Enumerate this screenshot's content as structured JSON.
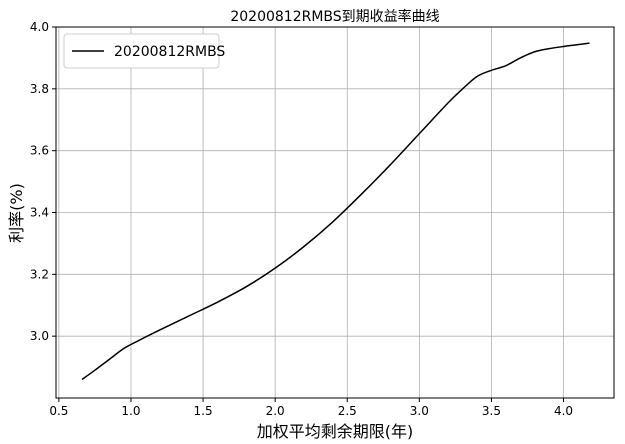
{
  "chart_data": {
    "type": "line",
    "title": "20200812RMBS到期收益率曲线",
    "xlabel": "加权平均剩余期限(年)",
    "ylabel": "利率(%)",
    "xlim": [
      0.48,
      4.35
    ],
    "ylim": [
      2.8,
      4.0
    ],
    "xticks": [
      0.5,
      1.0,
      1.5,
      2.0,
      2.5,
      3.0,
      3.5,
      4.0
    ],
    "xtick_labels": [
      "0.5",
      "1.0",
      "1.5",
      "2.0",
      "2.5",
      "3.0",
      "3.5",
      "4.0"
    ],
    "yticks": [
      3.0,
      3.2,
      3.4,
      3.6,
      3.8,
      4.0
    ],
    "ytick_labels": [
      "3.0",
      "3.2",
      "3.4",
      "3.6",
      "3.8",
      "4.0"
    ],
    "grid": true,
    "legend": {
      "position": "top-left",
      "entries": [
        "20200812RMBS"
      ]
    },
    "series": [
      {
        "name": "20200812RMBS",
        "color": "#000000",
        "x": [
          0.66,
          0.75,
          0.85,
          0.95,
          1.05,
          1.2,
          1.4,
          1.6,
          1.8,
          2.0,
          2.2,
          2.4,
          2.6,
          2.8,
          3.0,
          3.2,
          3.3,
          3.4,
          3.5,
          3.6,
          3.7,
          3.8,
          3.9,
          4.0,
          4.1,
          4.18
        ],
        "y": [
          2.86,
          2.89,
          2.925,
          2.96,
          2.985,
          3.02,
          3.065,
          3.11,
          3.16,
          3.22,
          3.29,
          3.37,
          3.46,
          3.555,
          3.655,
          3.755,
          3.8,
          3.84,
          3.86,
          3.875,
          3.9,
          3.92,
          3.93,
          3.937,
          3.943,
          3.948
        ]
      }
    ]
  }
}
